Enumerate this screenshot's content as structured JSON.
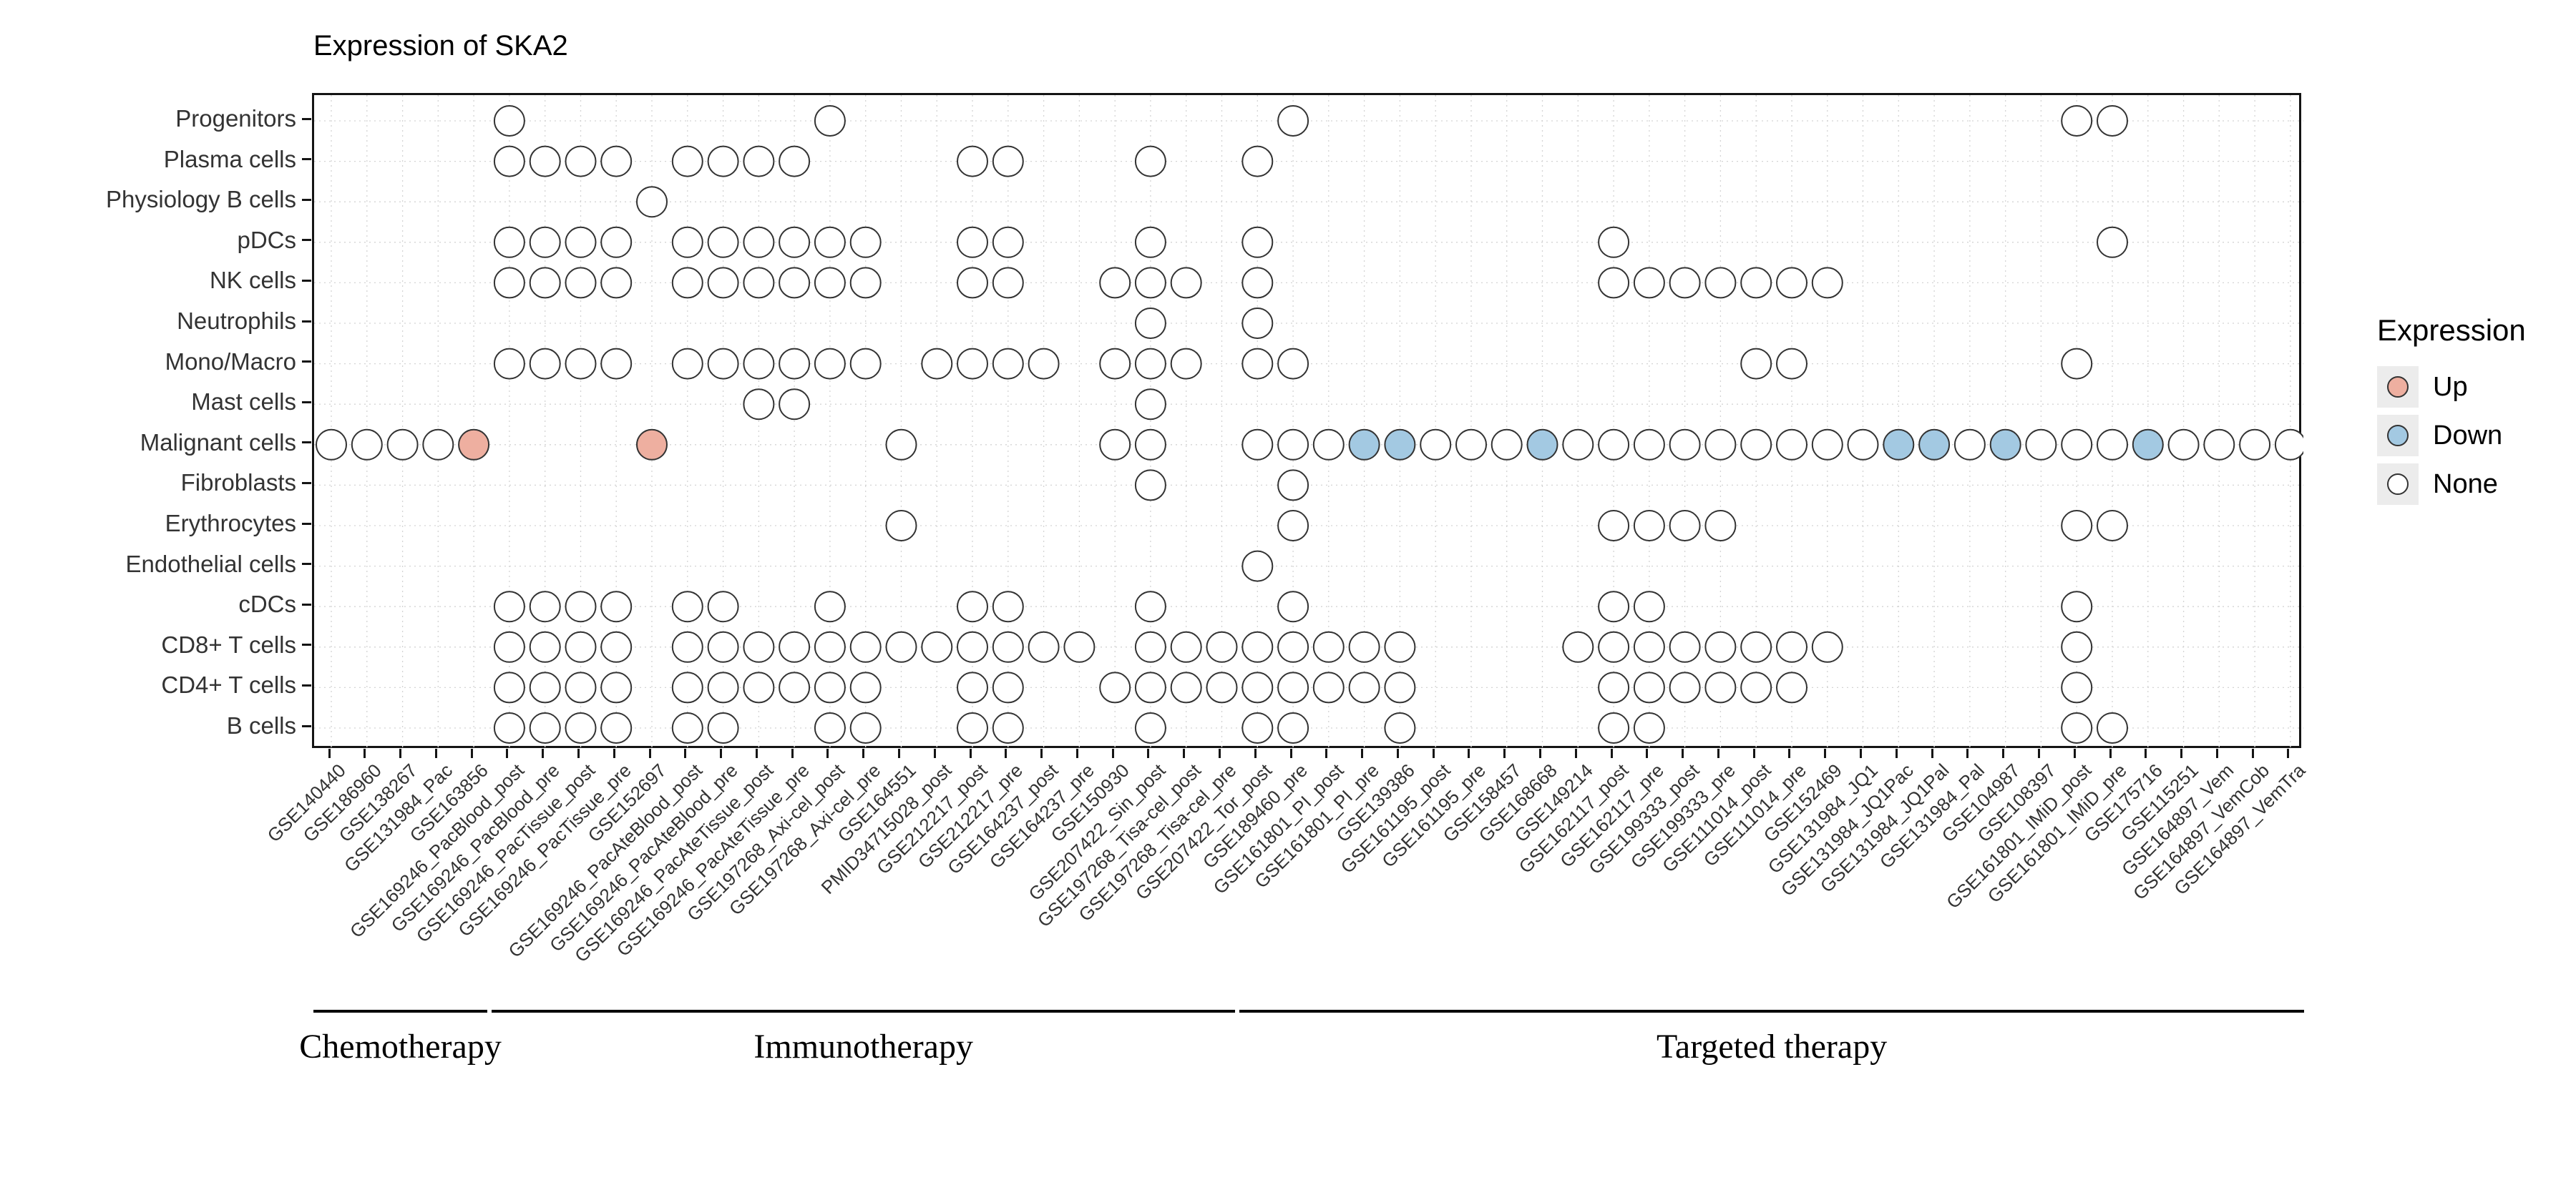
{
  "chart_data": {
    "type": "scatter",
    "title": "Expression of SKA2",
    "colors": {
      "up": "#eeafa0",
      "down": "#a3c9e2",
      "none": "#ffffff",
      "stroke": "#333333"
    },
    "legend": {
      "title": "Expression",
      "items": [
        {
          "label": "Up",
          "color": "#eeafa0"
        },
        {
          "label": "Down",
          "color": "#a3c9e2"
        },
        {
          "label": "None",
          "color": "#ffffff"
        }
      ]
    },
    "x_groups": [
      {
        "label": "Chemotherapy",
        "start": 1,
        "end": 5
      },
      {
        "label": "Immunotherapy",
        "start": 6,
        "end": 26
      },
      {
        "label": "Targeted therapy",
        "start": 27,
        "end": 56
      }
    ],
    "rows": [
      "Progenitors",
      "Plasma cells",
      "Physiology B cells",
      "pDCs",
      "NK cells",
      "Neutrophils",
      "Mono/Macro",
      "Mast cells",
      "Malignant cells",
      "Fibroblasts",
      "Erythrocytes",
      "Endothelial cells",
      "cDCs",
      "CD8+ T cells",
      "CD4+ T cells",
      "B cells"
    ],
    "columns": [
      "GSE140440",
      "GSE186960",
      "GSE138267",
      "GSE131984_Pac",
      "GSE163856",
      "GSE169246_PacBlood_post",
      "GSE169246_PacBlood_pre",
      "GSE169246_PacTissue_post",
      "GSE169246_PacTissue_pre",
      "GSE152697",
      "GSE169246_PacAteBlood_post",
      "GSE169246_PacAteBlood_pre",
      "GSE169246_PacAteTissue_post",
      "GSE169246_PacAteTissue_pre",
      "GSE197268_Axi-cel_post",
      "GSE197268_Axi-cel_pre",
      "GSE164551",
      "PMID34715028_post",
      "GSE212217_post",
      "GSE212217_pre",
      "GSE164237_post",
      "GSE164237_pre",
      "GSE150930",
      "GSE207422_Sin_post",
      "GSE197268_Tisa-cel_post",
      "GSE197268_Tisa-cel_pre",
      "GSE207422_Tor_post",
      "GSE189460_pre",
      "GSE161801_PI_post",
      "GSE161801_PI_pre",
      "GSE139386",
      "GSE161195_post",
      "GSE161195_pre",
      "GSE158457",
      "GSE168668",
      "GSE149214",
      "GSE162117_post",
      "GSE162117_pre",
      "GSE199333_post",
      "GSE199333_pre",
      "GSE111014_post",
      "GSE111014_pre",
      "GSE152469",
      "GSE131984_JQ1",
      "GSE131984_JQ1Pac",
      "GSE131984_JQ1Pal",
      "GSE131984_Pal",
      "GSE104987",
      "GSE108397",
      "GSE161801_IMiD_post",
      "GSE161801_IMiD_pre",
      "GSE175716",
      "GSE115251",
      "GSE164897_Vem",
      "GSE164897_VemCob",
      "GSE164897_VemTra"
    ],
    "dots": [
      {
        "none": [
          6,
          15,
          28,
          50,
          51
        ]
      },
      {
        "none": [
          6,
          7,
          8,
          9,
          11,
          12,
          13,
          14,
          19,
          20,
          24,
          27
        ]
      },
      {
        "none": [
          10
        ]
      },
      {
        "none": [
          6,
          7,
          8,
          9,
          11,
          12,
          13,
          14,
          15,
          16,
          19,
          20,
          24,
          27,
          37,
          51
        ]
      },
      {
        "none": [
          6,
          7,
          8,
          9,
          11,
          12,
          13,
          14,
          15,
          16,
          19,
          20,
          23,
          24,
          25,
          27,
          37,
          38,
          39,
          40,
          41,
          42,
          43
        ]
      },
      {
        "none": [
          24,
          27
        ]
      },
      {
        "none": [
          6,
          7,
          8,
          9,
          11,
          12,
          13,
          14,
          15,
          16,
          18,
          19,
          20,
          21,
          23,
          24,
          25,
          27,
          28,
          41,
          42,
          50
        ]
      },
      {
        "none": [
          13,
          14,
          24
        ]
      },
      {
        "up": [
          5,
          10
        ],
        "down": [
          30,
          31,
          35,
          45,
          46,
          48,
          52
        ],
        "none": [
          1,
          2,
          3,
          4,
          17,
          23,
          24,
          27,
          28,
          29,
          32,
          33,
          34,
          36,
          37,
          38,
          39,
          40,
          41,
          42,
          43,
          44,
          47,
          49,
          50,
          51,
          53,
          54,
          55,
          56
        ]
      },
      {
        "none": [
          24,
          28
        ]
      },
      {
        "none": [
          17,
          28,
          37,
          38,
          39,
          40,
          50,
          51
        ]
      },
      {
        "none": [
          27
        ]
      },
      {
        "none": [
          6,
          7,
          8,
          9,
          11,
          12,
          15,
          19,
          20,
          24,
          28,
          37,
          38,
          50
        ]
      },
      {
        "none": [
          6,
          7,
          8,
          9,
          11,
          12,
          13,
          14,
          15,
          16,
          17,
          18,
          19,
          20,
          21,
          22,
          24,
          25,
          26,
          27,
          28,
          29,
          30,
          31,
          36,
          37,
          38,
          39,
          40,
          41,
          42,
          43,
          50
        ]
      },
      {
        "none": [
          6,
          7,
          8,
          9,
          11,
          12,
          13,
          14,
          15,
          16,
          19,
          20,
          23,
          24,
          25,
          26,
          27,
          28,
          29,
          30,
          31,
          37,
          38,
          39,
          40,
          41,
          42,
          50
        ]
      },
      {
        "none": [
          6,
          7,
          8,
          9,
          11,
          12,
          15,
          16,
          19,
          20,
          24,
          27,
          28,
          31,
          37,
          38,
          50,
          51
        ]
      }
    ]
  }
}
